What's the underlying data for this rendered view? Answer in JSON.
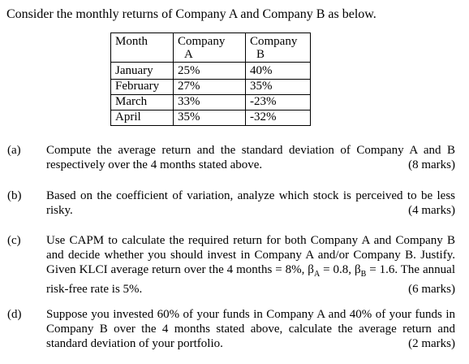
{
  "intro": "Consider the monthly returns of Company A and Company B as below.",
  "table": {
    "headers": {
      "month": "Month",
      "company_a_line1": "Company",
      "company_a_line2": "A",
      "company_b_line1": "Company",
      "company_b_line2": "B"
    },
    "rows": [
      {
        "month": "January",
        "a": "25%",
        "b": "40%"
      },
      {
        "month": "February",
        "a": "27%",
        "b": "35%"
      },
      {
        "month": "March",
        "a": "33%",
        "b": "-23%"
      },
      {
        "month": "April",
        "a": "35%",
        "b": "-32%"
      }
    ]
  },
  "questions": [
    {
      "label": "(a)",
      "text": "Compute the average return and the standard deviation of Company A and B respectively over the 4 months stated above.",
      "marks": "(8 marks)"
    },
    {
      "label": "(b)",
      "text": "Based on the coefficient of variation, analyze which stock is perceived to be less risky.",
      "marks": "(4 marks)"
    },
    {
      "label": "(c)",
      "text_part1": "Use CAPM to calculate the required return for both Company A and Company B and decide whether you should invest in Company A and/or Company B. Justify. Given KLCI average return over the 4 months = 8%, β",
      "sub_a": "A",
      "text_part2": " = 0.8, β",
      "sub_b": "B",
      "text_part3": " = 1.6. The annual risk-free rate is 5%.",
      "marks": "(6 marks)"
    },
    {
      "label": "(d)",
      "text": "Suppose you invested 60% of your funds in Company A and 40% of your funds in Company B over the 4 months stated above, calculate the average return and standard deviation of your portfolio.",
      "marks": "(2 marks)"
    }
  ]
}
